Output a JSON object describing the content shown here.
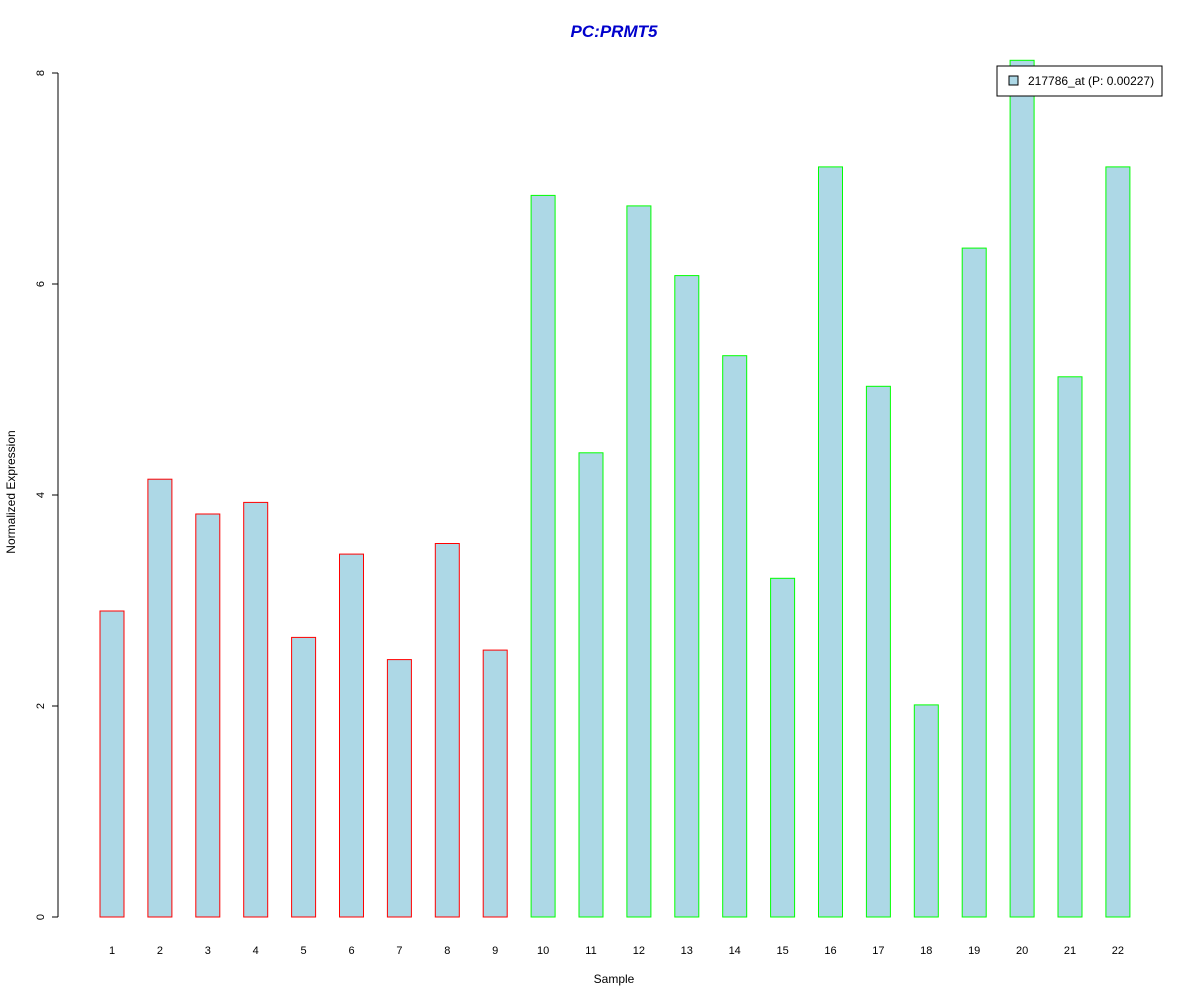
{
  "chart_data": {
    "type": "bar",
    "title": "PC:PRMT5",
    "xlabel": "Sample",
    "ylabel": "Normalized Expression",
    "categories": [
      "1",
      "2",
      "3",
      "4",
      "5",
      "6",
      "7",
      "8",
      "9",
      "10",
      "11",
      "12",
      "13",
      "14",
      "15",
      "16",
      "17",
      "18",
      "19",
      "20",
      "21",
      "22"
    ],
    "series": [
      {
        "name": "217786_at (P: 0.00227)",
        "values": [
          2.9,
          4.15,
          3.82,
          3.93,
          2.65,
          3.44,
          2.44,
          3.54,
          2.53,
          6.84,
          4.4,
          6.74,
          6.08,
          5.32,
          3.21,
          7.11,
          5.03,
          2.01,
          6.34,
          8.12,
          5.12,
          7.11
        ]
      }
    ],
    "ylim": [
      0,
      8
    ],
    "yticks": [
      "0",
      "2",
      "4",
      "6",
      "8"
    ],
    "legend": "top-right",
    "grid": false,
    "colors": {
      "fill": "#add8e6",
      "group1_border": "#ff0000",
      "group2_border": "#00ff00",
      "title": "#0000cc"
    },
    "groups": [
      1,
      1,
      1,
      1,
      1,
      1,
      1,
      1,
      1,
      2,
      2,
      2,
      2,
      2,
      2,
      2,
      2,
      2,
      2,
      2,
      2,
      2
    ]
  }
}
